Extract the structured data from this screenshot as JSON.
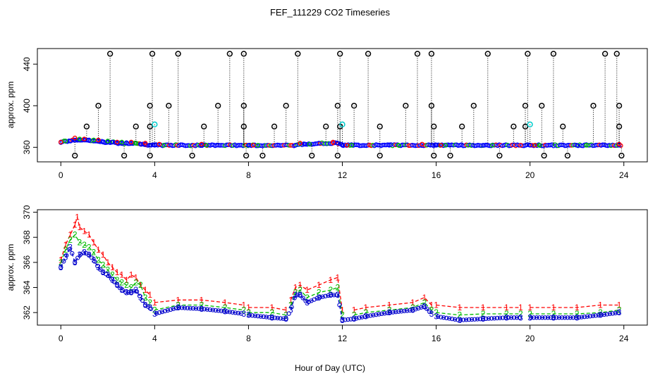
{
  "chart_data": [
    {
      "type": "scatter",
      "title": "FEF_111229  CO2 Timeseries",
      "ylabel": "approx. ppm",
      "xlim": [
        -1,
        25
      ],
      "ylim": [
        346,
        455
      ],
      "xticks": [
        "0",
        "4",
        "8",
        "12",
        "16",
        "20",
        "24"
      ],
      "yticks": [
        "360",
        "400",
        "440"
      ],
      "series": [
        {
          "name": "cal-blue",
          "color": "#0000ff",
          "marker": "circle",
          "x": [
            0.0,
            0.2,
            0.4,
            0.6,
            0.8,
            1.0,
            1.2,
            1.4,
            1.6,
            1.8,
            2.0,
            2.2,
            2.4,
            2.6,
            2.8,
            3.0,
            3.2,
            3.4,
            3.6,
            3.8,
            4.0,
            6.0,
            8.0,
            10.0,
            10.4,
            11.0,
            11.8,
            12.0,
            14.0,
            16.0,
            18.0,
            20.0,
            22.0,
            23.8
          ],
          "y": [
            365,
            366,
            366,
            367,
            367,
            367,
            367,
            366,
            366,
            365,
            365,
            365,
            364,
            364,
            364,
            364,
            364,
            363,
            363,
            362,
            362,
            362,
            362,
            362,
            363,
            364,
            364,
            362,
            362,
            362,
            362,
            362,
            362,
            362
          ]
        },
        {
          "name": "cal-red",
          "color": "#ff0000",
          "marker": "circle",
          "x": [
            0.0,
            0.6,
            1.0,
            1.6,
            2.4,
            3.0,
            3.6,
            4.2,
            6.0,
            8.2,
            10.2,
            11.6,
            12.2,
            15.4,
            16.2,
            19.6,
            20.2,
            23.8
          ],
          "y": [
            365,
            369,
            368,
            367,
            365,
            365,
            364,
            363,
            363,
            362,
            364,
            365,
            362,
            363,
            362,
            362,
            362,
            363
          ]
        },
        {
          "name": "cal-green",
          "color": "#00bb00",
          "marker": "circle",
          "x": [
            0.2,
            0.8,
            1.4,
            2.0,
            2.6,
            3.2,
            4.4,
            6.2,
            8.4,
            10.6,
            12.4,
            14.4,
            16.4,
            18.4,
            20.4,
            22.4
          ],
          "y": [
            366,
            368,
            367,
            366,
            365,
            364,
            362,
            362,
            362,
            363,
            362,
            362,
            362,
            362,
            362,
            362
          ]
        },
        {
          "name": "spikes-high",
          "color": "#000000",
          "marker": "ring",
          "x": [
            2.1,
            3.9,
            5.0,
            7.2,
            7.8,
            10.1,
            11.9,
            13.1,
            15.2,
            15.8,
            18.2,
            19.9,
            21.0,
            23.2,
            23.7
          ],
          "y": [
            450,
            450,
            450,
            450,
            450,
            450,
            450,
            450,
            450,
            450,
            450,
            450,
            450,
            450,
            450
          ]
        },
        {
          "name": "spikes-mid",
          "color": "#000000",
          "marker": "ring",
          "x": [
            1.6,
            3.8,
            4.6,
            6.7,
            7.8,
            9.6,
            11.8,
            12.5,
            14.7,
            15.8,
            17.6,
            19.8,
            20.5,
            22.7,
            23.8
          ],
          "y": [
            400,
            400,
            400,
            400,
            400,
            400,
            400,
            400,
            400,
            400,
            400,
            400,
            400,
            400,
            400
          ]
        },
        {
          "name": "spikes-low",
          "color": "#000000",
          "marker": "ring",
          "x": [
            1.1,
            3.2,
            3.8,
            6.1,
            7.8,
            9.1,
            11.3,
            11.9,
            13.6,
            15.9,
            17.1,
            19.3,
            19.8,
            21.4,
            23.8
          ],
          "y": [
            380,
            380,
            380,
            380,
            380,
            380,
            380,
            380,
            380,
            380,
            380,
            380,
            380,
            380,
            380
          ]
        },
        {
          "name": "spikes-bottom",
          "color": "#000000",
          "marker": "ring",
          "x": [
            0.6,
            2.7,
            3.8,
            5.6,
            7.9,
            8.6,
            10.7,
            11.8,
            13.6,
            15.9,
            16.6,
            18.7,
            20.6,
            21.6,
            23.9
          ],
          "y": [
            352,
            352,
            352,
            352,
            352,
            352,
            352,
            352,
            352,
            352,
            352,
            352,
            352,
            352,
            352
          ]
        },
        {
          "name": "cyan-points",
          "color": "#00cccc",
          "marker": "ring",
          "x": [
            4.0,
            12.0,
            20.0
          ],
          "y": [
            382,
            382,
            382
          ]
        }
      ]
    },
    {
      "type": "line",
      "ylabel": "approx. ppm",
      "xlabel": "Hour of Day (UTC)",
      "xlim": [
        -1,
        25
      ],
      "ylim": [
        361,
        370.2
      ],
      "xticks": [
        "0",
        "4",
        "8",
        "12",
        "16",
        "20",
        "24"
      ],
      "yticks": [
        "362",
        "364",
        "366",
        "368",
        "370"
      ],
      "segments": [
        [
          0,
          3.9
        ],
        [
          4.0,
          7.8
        ],
        [
          8.0,
          9.6
        ],
        [
          9.6,
          12.0
        ],
        [
          12.1,
          15.8
        ],
        [
          16.0,
          19.6
        ],
        [
          20.0,
          23.8
        ]
      ],
      "series": [
        {
          "name": "1",
          "color": "#ff0000",
          "x": [
            0.0,
            0.2,
            0.4,
            0.6,
            0.7,
            0.8,
            1.0,
            1.2,
            1.4,
            1.6,
            1.8,
            2.0,
            2.2,
            2.4,
            2.6,
            2.8,
            3.0,
            3.2,
            3.4,
            3.6,
            3.8,
            4.0,
            5.0,
            6.0,
            7.0,
            7.8,
            8.0,
            9.0,
            9.6,
            9.8,
            10.0,
            10.2,
            10.5,
            11.0,
            11.5,
            11.8,
            12.0,
            12.5,
            13.0,
            14.0,
            15.0,
            15.5,
            15.8,
            16.0,
            17.0,
            18.0,
            19.0,
            19.6,
            20.0,
            21.0,
            22.0,
            23.0,
            23.8
          ],
          "y": [
            366.2,
            367.4,
            368.2,
            369.0,
            369.6,
            368.8,
            368.5,
            368.2,
            367.6,
            367.0,
            366.6,
            366.0,
            365.6,
            365.2,
            365.0,
            364.6,
            365.0,
            364.8,
            364.2,
            363.8,
            363.4,
            362.8,
            363.0,
            363.0,
            362.8,
            362.6,
            362.4,
            362.4,
            362.2,
            363.0,
            364.0,
            364.2,
            363.8,
            364.2,
            364.6,
            364.8,
            362.2,
            362.2,
            362.4,
            362.6,
            362.8,
            363.2,
            362.6,
            362.6,
            362.4,
            362.4,
            362.4,
            362.4,
            362.4,
            362.4,
            362.4,
            362.6,
            362.6
          ]
        },
        {
          "name": "2",
          "color": "#00bb00",
          "x": [
            0.0,
            0.2,
            0.4,
            0.6,
            0.8,
            1.0,
            1.2,
            1.4,
            1.6,
            1.8,
            2.0,
            2.2,
            2.4,
            2.6,
            2.8,
            3.0,
            3.2,
            3.4,
            3.6,
            3.8,
            4.0,
            5.0,
            6.0,
            7.0,
            7.8,
            8.0,
            9.0,
            9.6,
            9.8,
            10.0,
            10.2,
            10.5,
            11.0,
            11.5,
            11.8,
            12.0,
            12.5,
            13.0,
            14.0,
            15.0,
            15.5,
            15.8,
            16.0,
            17.0,
            18.0,
            19.0,
            19.6,
            20.0,
            21.0,
            22.0,
            23.0,
            23.8
          ],
          "y": [
            366.0,
            367.0,
            367.8,
            368.2,
            367.6,
            367.4,
            367.2,
            366.8,
            366.2,
            365.8,
            365.4,
            365.0,
            364.6,
            364.4,
            364.2,
            364.0,
            364.4,
            364.2,
            363.2,
            362.8,
            362.2,
            362.6,
            362.6,
            362.4,
            362.2,
            362.0,
            362.0,
            361.8,
            362.6,
            363.6,
            363.8,
            363.2,
            363.6,
            363.8,
            364.0,
            361.8,
            361.8,
            362.0,
            362.2,
            362.4,
            362.8,
            362.2,
            362.0,
            361.8,
            361.9,
            361.9,
            361.9,
            361.9,
            361.9,
            361.9,
            362.0,
            362.2
          ]
        },
        {
          "name": "3",
          "color": "#0000cc",
          "x": [
            0.0,
            0.2,
            0.4,
            0.6,
            0.8,
            1.0,
            1.2,
            1.4,
            1.6,
            1.8,
            2.0,
            2.2,
            2.4,
            2.6,
            2.8,
            3.0,
            3.2,
            3.4,
            3.6,
            3.8,
            4.0,
            5.0,
            6.0,
            7.0,
            7.8,
            8.0,
            9.0,
            9.6,
            9.8,
            10.0,
            10.2,
            10.5,
            11.0,
            11.5,
            11.8,
            12.0,
            12.5,
            13.0,
            14.0,
            15.0,
            15.5,
            15.8,
            16.0,
            17.0,
            18.0,
            19.0,
            19.6,
            20.0,
            21.0,
            22.0,
            23.0,
            23.8
          ],
          "y": [
            365.6,
            366.4,
            367.2,
            366.0,
            366.6,
            366.8,
            366.6,
            366.2,
            365.6,
            365.2,
            365.0,
            364.6,
            364.2,
            363.8,
            363.6,
            363.6,
            363.8,
            363.2,
            362.6,
            362.4,
            361.9,
            362.4,
            362.3,
            362.1,
            361.9,
            361.8,
            361.6,
            361.5,
            362.2,
            363.4,
            363.4,
            362.8,
            363.2,
            363.4,
            363.4,
            361.4,
            361.5,
            361.7,
            362.0,
            362.2,
            362.5,
            361.9,
            361.7,
            361.4,
            361.5,
            361.6,
            361.6,
            361.6,
            361.6,
            361.6,
            361.8,
            362.0
          ]
        }
      ]
    }
  ]
}
